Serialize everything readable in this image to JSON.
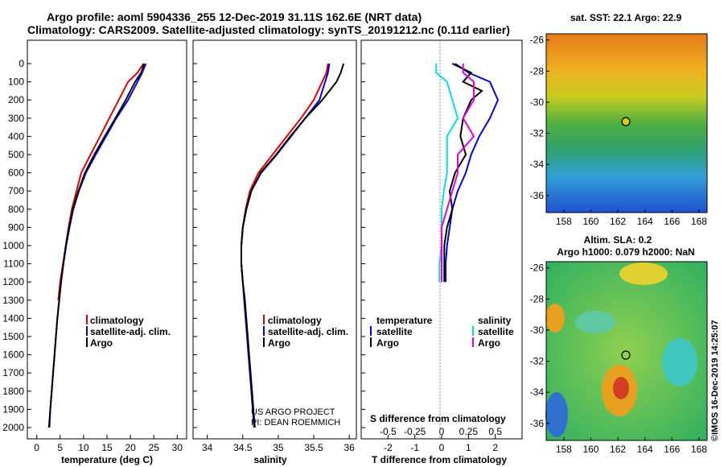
{
  "header": {
    "line1": "Argo profile: aoml 5904336_255 12-Dec-2019 31.11S 162.6E (NRT data)",
    "line2": "Climatology: CARS2009. Satellite-adjusted climatology: synTS_20191212.nc (0.11d earlier)"
  },
  "colors": {
    "climatology": "#e00000",
    "satellite": "#0000e0",
    "argo": "#000000",
    "sat_sal": "#00e0e0",
    "argo_sal": "#e000e0"
  },
  "depth_ticks": [
    "0",
    "100",
    "200",
    "300",
    "400",
    "500",
    "600",
    "700",
    "800",
    "900",
    "1000",
    "1100",
    "1200",
    "1300",
    "1400",
    "1500",
    "1600",
    "1700",
    "1800",
    "1900",
    "2000"
  ],
  "temperature_panel": {
    "xlabel": "temperature (deg C)",
    "xticks": [
      "0",
      "5",
      "10",
      "15",
      "20",
      "25",
      "30"
    ],
    "legend": [
      "climatology",
      "satellite-adj. clim.",
      "Argo"
    ]
  },
  "salinity_panel": {
    "xlabel": "salinity",
    "xticks": [
      "34",
      "34.5",
      "35",
      "35.5",
      "36"
    ],
    "legend": [
      "climatology",
      "satellite-adj. clim.",
      "Argo"
    ],
    "credit1": "US ARGO PROJECT",
    "credit2": "PI: DEAN ROEMMICH"
  },
  "difference_panel": {
    "xlabel": "T difference from climatology",
    "s_label": "S difference from climatology",
    "t_ticks": [
      "-2",
      "-1",
      "0",
      "1",
      "2"
    ],
    "s_ticks": [
      "-0.5",
      "-0.25",
      "0",
      "0.25",
      "0.5"
    ],
    "legend_left_title": "temperature",
    "legend_right_title": "salinity",
    "legend_sat": "satellite",
    "legend_argo": "Argo"
  },
  "sst_map": {
    "title": "sat. SST: 22.1 Argo: 22.9",
    "lon_ticks": [
      "158",
      "160",
      "162",
      "164",
      "166",
      "168"
    ],
    "lat_ticks": [
      "-26",
      "-28",
      "-30",
      "-32",
      "-34",
      "-36"
    ]
  },
  "sla_map": {
    "title1": "Altim. SLA: 0.2",
    "title2": "Argo h1000: 0.079 h2000: NaN",
    "lon_ticks": [
      "158",
      "160",
      "162",
      "164",
      "166",
      "168"
    ],
    "lat_ticks": [
      "-26",
      "-28",
      "-30",
      "-32",
      "-34",
      "-36"
    ]
  },
  "stamp": "©IMOS 16-Dec-2019 14:25:07",
  "chart_data": [
    {
      "type": "line",
      "xlabel": "temperature (deg C)",
      "xlim": [
        -2,
        32
      ],
      "ylim": [
        2000,
        0
      ],
      "series": [
        {
          "name": "climatology",
          "points": [
            [
              22.8,
              0
            ],
            [
              21.5,
              50
            ],
            [
              19.5,
              100
            ],
            [
              17.5,
              200
            ],
            [
              15.5,
              300
            ],
            [
              13.5,
              400
            ],
            [
              11.5,
              500
            ],
            [
              9.5,
              600
            ],
            [
              8.5,
              700
            ],
            [
              7.5,
              800
            ],
            [
              6.8,
              900
            ],
            [
              6.2,
              1000
            ],
            [
              5.6,
              1100
            ],
            [
              5,
              1200
            ],
            [
              4.6,
              1300
            ]
          ]
        },
        {
          "name": "satellite-adj. clim.",
          "points": [
            [
              23.3,
              0
            ],
            [
              22.5,
              50
            ],
            [
              21.5,
              100
            ],
            [
              19.5,
              200
            ],
            [
              17,
              300
            ],
            [
              14.8,
              400
            ],
            [
              12.6,
              500
            ],
            [
              10.5,
              600
            ],
            [
              9,
              700
            ],
            [
              7.8,
              800
            ],
            [
              7,
              900
            ],
            [
              6.3,
              1000
            ],
            [
              5.7,
              1100
            ],
            [
              5.2,
              1200
            ],
            [
              4.8,
              1300
            ],
            [
              4.4,
              1400
            ],
            [
              4.1,
              1500
            ],
            [
              3.8,
              1600
            ],
            [
              3.5,
              1700
            ],
            [
              3.2,
              1800
            ],
            [
              2.9,
              1900
            ],
            [
              2.6,
              2000
            ]
          ]
        },
        {
          "name": "Argo",
          "points": [
            [
              22.9,
              0
            ],
            [
              22.3,
              50
            ],
            [
              21,
              100
            ],
            [
              19,
              200
            ],
            [
              16.8,
              300
            ],
            [
              14.5,
              400
            ],
            [
              12.3,
              500
            ],
            [
              10.3,
              600
            ],
            [
              8.9,
              700
            ],
            [
              7.7,
              800
            ],
            [
              6.9,
              900
            ],
            [
              6.2,
              1000
            ],
            [
              5.7,
              1100
            ],
            [
              5.2,
              1200
            ],
            [
              4.8,
              1300
            ],
            [
              4.4,
              1400
            ],
            [
              4.1,
              1500
            ],
            [
              3.8,
              1600
            ],
            [
              3.5,
              1700
            ],
            [
              3.2,
              1800
            ],
            [
              2.9,
              1900
            ],
            [
              2.7,
              2000
            ]
          ]
        }
      ]
    },
    {
      "type": "line",
      "xlabel": "salinity",
      "xlim": [
        33.8,
        36.1
      ],
      "ylim": [
        2000,
        0
      ],
      "series": [
        {
          "name": "climatology",
          "points": [
            [
              35.7,
              0
            ],
            [
              35.68,
              50
            ],
            [
              35.62,
              100
            ],
            [
              35.5,
              200
            ],
            [
              35.32,
              300
            ],
            [
              35.12,
              400
            ],
            [
              34.92,
              500
            ],
            [
              34.72,
              600
            ],
            [
              34.6,
              700
            ],
            [
              34.54,
              800
            ],
            [
              34.5,
              900
            ],
            [
              34.48,
              1000
            ],
            [
              34.48,
              1100
            ],
            [
              34.5,
              1200
            ],
            [
              34.53,
              1300
            ]
          ]
        },
        {
          "name": "satellite-adj. clim.",
          "points": [
            [
              35.72,
              0
            ],
            [
              35.7,
              50
            ],
            [
              35.66,
              100
            ],
            [
              35.58,
              200
            ],
            [
              35.38,
              300
            ],
            [
              35.18,
              400
            ],
            [
              34.98,
              500
            ],
            [
              34.76,
              600
            ],
            [
              34.62,
              700
            ],
            [
              34.55,
              800
            ],
            [
              34.5,
              900
            ],
            [
              34.48,
              1000
            ],
            [
              34.48,
              1100
            ],
            [
              34.5,
              1200
            ],
            [
              34.52,
              1300
            ],
            [
              34.54,
              1400
            ],
            [
              34.56,
              1500
            ],
            [
              34.58,
              1600
            ],
            [
              34.6,
              1700
            ],
            [
              34.62,
              1800
            ],
            [
              34.64,
              1900
            ],
            [
              34.66,
              2000
            ]
          ]
        },
        {
          "name": "Argo",
          "points": [
            [
              35.92,
              0
            ],
            [
              35.88,
              50
            ],
            [
              35.82,
              100
            ],
            [
              35.62,
              200
            ],
            [
              35.38,
              300
            ],
            [
              35.17,
              400
            ],
            [
              34.97,
              500
            ],
            [
              34.75,
              600
            ],
            [
              34.62,
              700
            ],
            [
              34.55,
              800
            ],
            [
              34.5,
              900
            ],
            [
              34.48,
              1000
            ],
            [
              34.48,
              1100
            ],
            [
              34.5,
              1200
            ],
            [
              34.53,
              1300
            ],
            [
              34.55,
              1400
            ],
            [
              34.57,
              1500
            ],
            [
              34.59,
              1600
            ],
            [
              34.61,
              1700
            ],
            [
              34.63,
              1800
            ],
            [
              34.65,
              1900
            ],
            [
              34.67,
              2000
            ]
          ]
        }
      ]
    },
    {
      "type": "line",
      "xlabel": "T difference from climatology",
      "xlim": [
        -3,
        3
      ],
      "ylim": [
        2000,
        0
      ],
      "series": [
        {
          "name": "satellite",
          "variable": "temperature",
          "points": [
            [
              0.5,
              0
            ],
            [
              1,
              50
            ],
            [
              1.8,
              100
            ],
            [
              2.1,
              200
            ],
            [
              1.8,
              300
            ],
            [
              1.4,
              400
            ],
            [
              1.1,
              500
            ],
            [
              0.9,
              600
            ],
            [
              0.6,
              700
            ],
            [
              0.4,
              800
            ],
            [
              0.3,
              900
            ],
            [
              0.2,
              1000
            ],
            [
              0.15,
              1100
            ],
            [
              0.15,
              1200
            ]
          ]
        },
        {
          "name": "Argo",
          "variable": "temperature",
          "points": [
            [
              0.4,
              0
            ],
            [
              1.1,
              50
            ],
            [
              0.8,
              100
            ],
            [
              1.5,
              150
            ],
            [
              1.1,
              200
            ],
            [
              0.8,
              300
            ],
            [
              0.7,
              400
            ],
            [
              0.9,
              500
            ],
            [
              0.5,
              600
            ],
            [
              0.3,
              700
            ],
            [
              0.4,
              800
            ],
            [
              0.2,
              900
            ],
            [
              0.1,
              1000
            ],
            [
              0.1,
              1100
            ],
            [
              0.1,
              1200
            ]
          ]
        },
        {
          "name": "satellite",
          "variable": "salinity",
          "points": [
            [
              -0.05,
              0
            ],
            [
              -0.05,
              50
            ],
            [
              0.05,
              100
            ],
            [
              0.1,
              200
            ],
            [
              0.15,
              300
            ],
            [
              0.05,
              400
            ],
            [
              0.05,
              500
            ],
            [
              0.05,
              600
            ],
            [
              0.02,
              700
            ],
            [
              0,
              800
            ],
            [
              0,
              900
            ],
            [
              0,
              1000
            ],
            [
              -0.02,
              1100
            ],
            [
              -0.02,
              1200
            ]
          ]
        },
        {
          "name": "Argo",
          "variable": "salinity",
          "points": [
            [
              0.2,
              0
            ],
            [
              0.2,
              50
            ],
            [
              0.3,
              100
            ],
            [
              0.3,
              200
            ],
            [
              0.2,
              300
            ],
            [
              0.3,
              400
            ],
            [
              0.15,
              500
            ],
            [
              0.15,
              600
            ],
            [
              0.1,
              700
            ],
            [
              0.05,
              800
            ],
            [
              0,
              900
            ],
            [
              0,
              1000
            ],
            [
              0,
              1100
            ],
            [
              0,
              1200
            ]
          ]
        }
      ]
    }
  ]
}
